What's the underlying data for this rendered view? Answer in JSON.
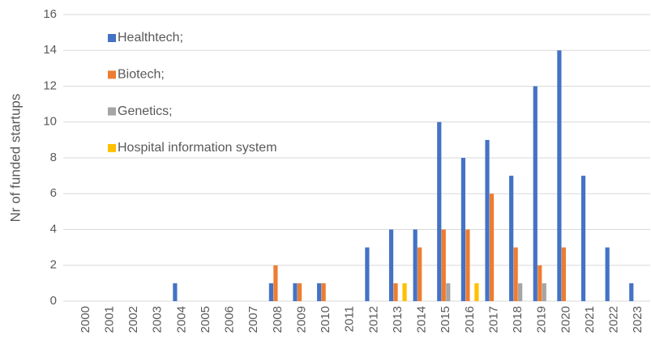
{
  "chart_data": {
    "type": "bar",
    "y_label": "Nr of funded startups",
    "categories": [
      "2000",
      "2001",
      "2002",
      "2003",
      "2004",
      "2005",
      "2006",
      "2007",
      "2008",
      "2009",
      "2010",
      "2011",
      "2012",
      "2013",
      "2014",
      "2015",
      "2016",
      "2017",
      "2018",
      "2019",
      "2020",
      "2021",
      "2022",
      "2023"
    ],
    "series": [
      {
        "name": "Healthtech;",
        "color": "#4472c4",
        "values": [
          0,
          0,
          0,
          0,
          1,
          0,
          0,
          0,
          1,
          1,
          1,
          0,
          3,
          4,
          4,
          10,
          8,
          9,
          7,
          12,
          14,
          7,
          3,
          1
        ]
      },
      {
        "name": "Biotech;",
        "color": "#ed7d31",
        "values": [
          0,
          0,
          0,
          0,
          0,
          0,
          0,
          0,
          2,
          1,
          1,
          0,
          0,
          1,
          3,
          4,
          4,
          6,
          3,
          2,
          3,
          0,
          0,
          0
        ]
      },
      {
        "name": "Genetics;",
        "color": "#a5a5a5",
        "values": [
          0,
          0,
          0,
          0,
          0,
          0,
          0,
          0,
          0,
          0,
          0,
          0,
          0,
          0,
          0,
          1,
          0,
          0,
          1,
          1,
          0,
          0,
          0,
          0
        ]
      },
      {
        "name": "Hospital information system",
        "color": "#ffc000",
        "values": [
          0,
          0,
          0,
          0,
          0,
          0,
          0,
          0,
          0,
          0,
          0,
          0,
          0,
          1,
          0,
          0,
          1,
          0,
          0,
          0,
          0,
          0,
          0,
          0
        ]
      }
    ],
    "ylim": [
      0,
      16
    ],
    "yticks": [
      0,
      2,
      4,
      6,
      8,
      10,
      12,
      14,
      16
    ],
    "grid": true,
    "legend": "upper left"
  }
}
